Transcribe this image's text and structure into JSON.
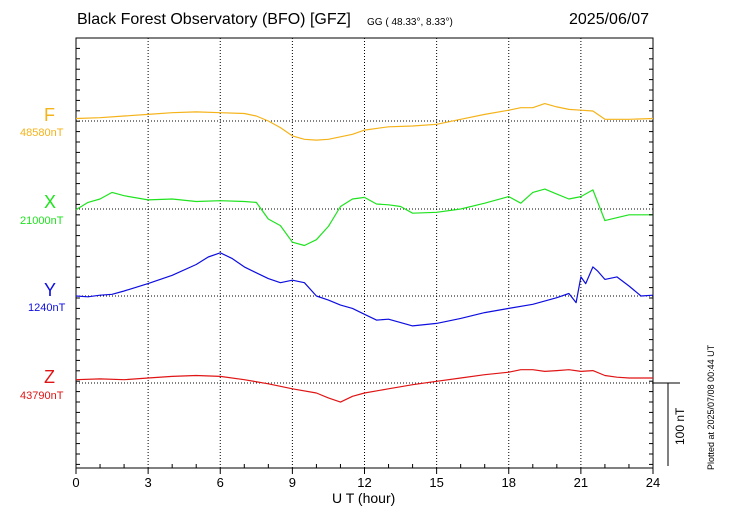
{
  "header": {
    "title": "Black Forest Observatory (BFO)  [GFZ]",
    "coords": "GG ( 48.33°,   8.33°)",
    "date": "2025/06/07"
  },
  "plotted_note": "Plotted at 2025/07/08 00:44 UT",
  "scale_bar_label": "100 nT",
  "chart_data": {
    "type": "line",
    "title": "Black Forest Observatory (BFO)  [GFZ]",
    "xlabel": "U T (hour)",
    "xlim": [
      0,
      24
    ],
    "xticks": [
      "0",
      "3",
      "6",
      "9",
      "12",
      "15",
      "18",
      "21",
      "24"
    ],
    "grid": true,
    "scale_nT": 100,
    "series": [
      {
        "name": "F",
        "baseline_label": "48580nT",
        "baseline": 48580,
        "color": "#f5b31a",
        "x": [
          0,
          1,
          2,
          3,
          4,
          5,
          6,
          7,
          7.5,
          8,
          8.5,
          9,
          9.5,
          10,
          10.5,
          11,
          11.5,
          12,
          13,
          14,
          15,
          16,
          17,
          18,
          18.5,
          19,
          19.5,
          20,
          20.5,
          21,
          21.5,
          22,
          23,
          24
        ],
        "y": [
          48583,
          48584,
          48586,
          48588,
          48590,
          48591,
          48590,
          48589,
          48586,
          48580,
          48572,
          48562,
          48558,
          48557,
          48558,
          48561,
          48564,
          48569,
          48573,
          48574,
          48576,
          48582,
          48588,
          48593,
          48596,
          48596,
          48601,
          48597,
          48594,
          48593,
          48592,
          48582,
          48582,
          48583
        ]
      },
      {
        "name": "X",
        "baseline_label": "21000nT",
        "baseline": 21000,
        "color": "#1ee31e",
        "x": [
          0,
          0.5,
          1,
          1.5,
          2,
          3,
          4,
          5,
          6,
          7,
          7.5,
          8,
          8.5,
          9,
          9.5,
          10,
          10.5,
          11,
          11.5,
          12,
          12.5,
          13,
          13.5,
          14,
          15,
          16,
          17,
          18,
          18.5,
          19,
          19.5,
          20,
          20.5,
          21,
          21.5,
          22,
          23,
          24
        ],
        "y": [
          20999,
          21008,
          21012,
          21020,
          21016,
          21011,
          21012,
          21009,
          21010,
          21009,
          21008,
          20988,
          20980,
          20960,
          20956,
          20963,
          20979,
          21003,
          21012,
          21014,
          21006,
          21005,
          21003,
          20995,
          20996,
          21000,
          21007,
          21015,
          21007,
          21020,
          21024,
          21018,
          21012,
          21015,
          21023,
          20986,
          20993,
          20993
        ]
      },
      {
        "name": "Y",
        "baseline_label": "1240nT",
        "baseline": 1240,
        "color": "#0e0ee0",
        "x": [
          0,
          0.5,
          1,
          1.5,
          2,
          3,
          4,
          5,
          5.5,
          6,
          6.5,
          7,
          7.5,
          8,
          8.5,
          9,
          9.5,
          10,
          10.5,
          11,
          11.5,
          12,
          12.5,
          13,
          13.5,
          14,
          15,
          16,
          17,
          18,
          19,
          20,
          20.5,
          20.8,
          21,
          21.2,
          21.5,
          21.7,
          22,
          22.5,
          23,
          23.5,
          24
        ],
        "y": [
          1240,
          1239,
          1241,
          1242,
          1246,
          1255,
          1265,
          1278,
          1287,
          1292,
          1285,
          1275,
          1268,
          1261,
          1256,
          1259,
          1256,
          1240,
          1235,
          1229,
          1225,
          1218,
          1211,
          1212,
          1208,
          1204,
          1207,
          1213,
          1220,
          1225,
          1230,
          1238,
          1243,
          1232,
          1263,
          1255,
          1275,
          1270,
          1260,
          1263,
          1252,
          1240,
          1241
        ]
      },
      {
        "name": "Z",
        "baseline_label": "43790nT",
        "baseline": 43790,
        "color": "#e01414",
        "x": [
          0,
          1,
          2,
          3,
          4,
          5,
          6,
          7,
          8,
          9,
          10,
          10.5,
          11,
          11.5,
          12,
          13,
          14,
          15,
          16,
          17,
          18,
          18.5,
          19,
          19.5,
          20,
          20.5,
          21,
          21.5,
          22,
          22.5,
          23,
          24
        ],
        "y": [
          43794,
          43795,
          43794,
          43796,
          43798,
          43799,
          43798,
          43794,
          43789,
          43783,
          43778,
          43772,
          43767,
          43774,
          43778,
          43783,
          43788,
          43792,
          43796,
          43800,
          43803,
          43806,
          43806,
          43804,
          43805,
          43806,
          43804,
          43805,
          43799,
          43797,
          43796,
          43796
        ]
      }
    ]
  }
}
